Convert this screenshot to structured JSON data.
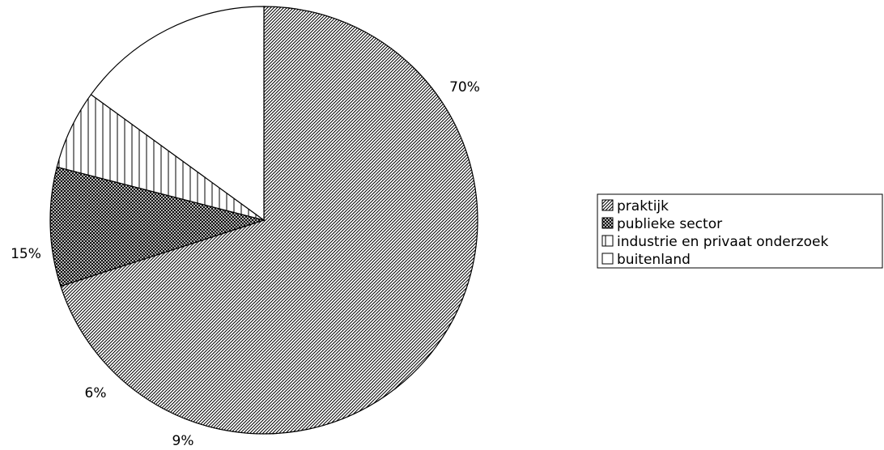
{
  "chart_data": {
    "type": "pie",
    "title": "",
    "categories": [
      "praktijk",
      "publieke sector",
      "industrie en privaat onderzoek",
      "buitenland"
    ],
    "values": [
      70,
      9,
      6,
      15
    ],
    "value_labels": [
      "70%",
      "9%",
      "6%",
      "15%"
    ],
    "series": [
      {
        "name": "praktijk",
        "value": 70,
        "pattern": "diagonal-hatch"
      },
      {
        "name": "publieke sector",
        "value": 9,
        "pattern": "crosshatch-dark"
      },
      {
        "name": "industrie en privaat onderzoek",
        "value": 6,
        "pattern": "vertical-stripes"
      },
      {
        "name": "buitenland",
        "value": 15,
        "pattern": "solid-white"
      }
    ],
    "legend": {
      "position": "right",
      "entries": [
        "praktijk",
        "publieke sector",
        "industrie en privaat onderzoek",
        "buitenland"
      ]
    },
    "colors": {
      "outline": "#000000",
      "background": "#ffffff"
    }
  }
}
